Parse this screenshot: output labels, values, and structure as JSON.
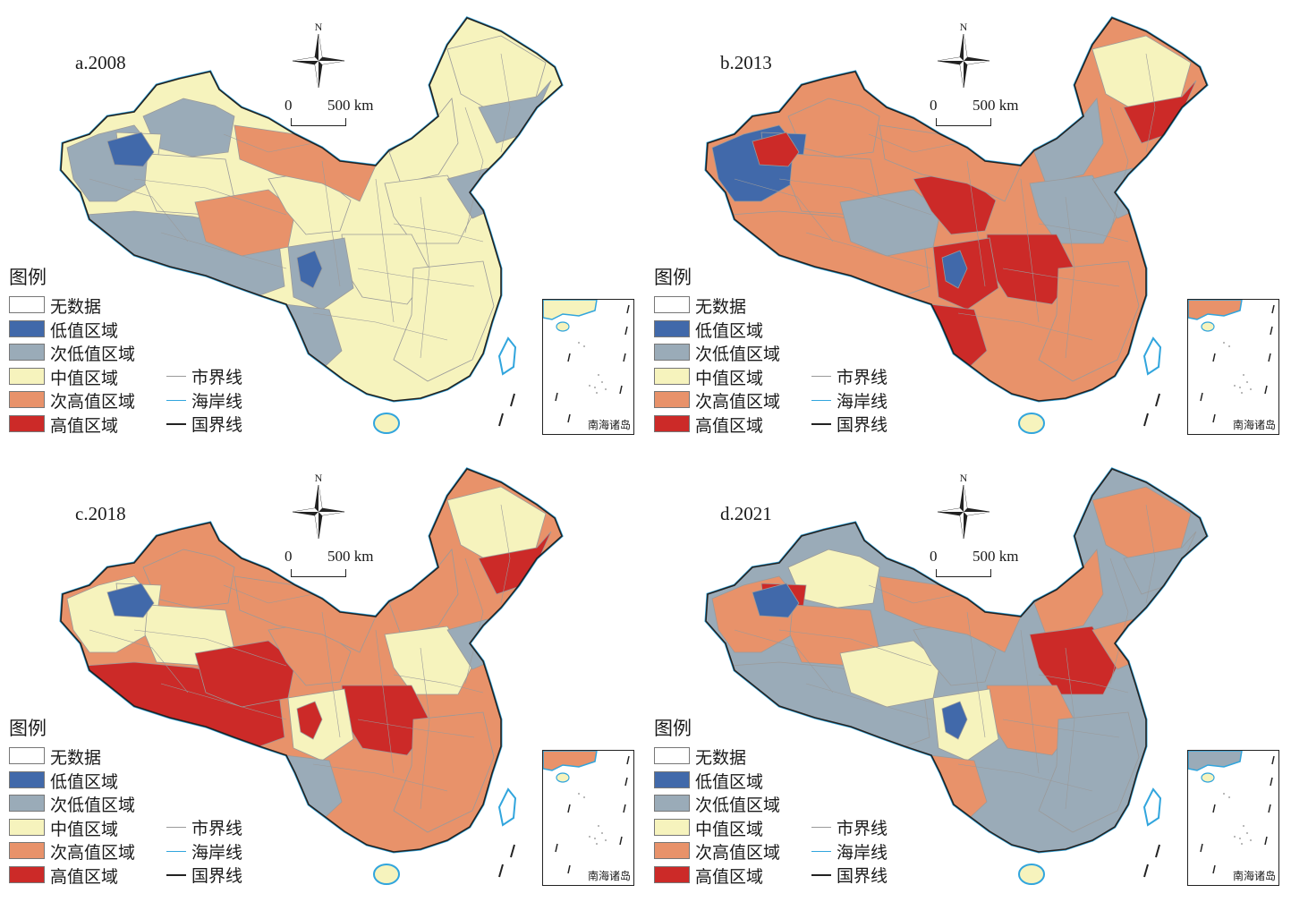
{
  "legend": {
    "title": "图例",
    "classes": [
      {
        "label": "无数据",
        "color": "#ffffff"
      },
      {
        "label": "低值区域",
        "color": "#4169aa"
      },
      {
        "label": "次低值区域",
        "color": "#9aabb8"
      },
      {
        "label": "中值区域",
        "color": "#f6f3bd"
      },
      {
        "label": "次高值区域",
        "color": "#e8926a"
      },
      {
        "label": "高值区域",
        "color": "#cc2a28"
      }
    ],
    "lines": [
      {
        "label": "市界线",
        "color": "#9a9a9a"
      },
      {
        "label": "海岸线",
        "color": "#31a5dd"
      },
      {
        "label": "国界线",
        "color": "#222222"
      }
    ]
  },
  "compass_label": "N",
  "scale": {
    "start": "0",
    "end": "500 km"
  },
  "inset_label": "南海诸岛",
  "panels": [
    {
      "label": "a.2008",
      "dominant": 3,
      "regions": {
        "xinjiang_north": 2,
        "xinjiang_west": 2,
        "xinjiang_east": 3,
        "xinjiang_central": 3,
        "tibet": 2,
        "qinghai": 4,
        "gansu": 3,
        "inner_mongolia_w": 4,
        "inner_mongolia_e": 3,
        "heilongjiang": 3,
        "jilin": 2,
        "north": 3,
        "central": 3,
        "sichuan": 2,
        "yunnan": 2,
        "southeast": 3,
        "northeast_coast": 2,
        "hainan": 3,
        "spot_a": 1,
        "spot_b": 1
      }
    },
    {
      "label": "b.2013",
      "dominant": 4,
      "regions": {
        "xinjiang_north": 4,
        "xinjiang_west": 1,
        "xinjiang_east": 1,
        "xinjiang_central": 4,
        "tibet": 4,
        "qinghai": 2,
        "gansu": 5,
        "inner_mongolia_w": 4,
        "inner_mongolia_e": 2,
        "heilongjiang": 3,
        "jilin": 5,
        "north": 2,
        "central": 5,
        "sichuan": 5,
        "yunnan": 5,
        "southeast": 4,
        "northeast_coast": 2,
        "hainan": 3,
        "spot_a": 5,
        "spot_b": 1
      }
    },
    {
      "label": "c.2018",
      "dominant": 4,
      "regions": {
        "xinjiang_north": 4,
        "xinjiang_west": 3,
        "xinjiang_east": 3,
        "xinjiang_central": 3,
        "tibet": 5,
        "qinghai": 5,
        "gansu": 4,
        "inner_mongolia_w": 4,
        "inner_mongolia_e": 4,
        "heilongjiang": 3,
        "jilin": 5,
        "north": 3,
        "central": 5,
        "sichuan": 3,
        "yunnan": 2,
        "southeast": 4,
        "northeast_coast": 2,
        "hainan": 3,
        "spot_a": 1,
        "spot_b": 5
      }
    },
    {
      "label": "d.2021",
      "dominant": 2,
      "regions": {
        "xinjiang_north": 3,
        "xinjiang_west": 4,
        "xinjiang_east": 5,
        "xinjiang_central": 4,
        "tibet": 2,
        "qinghai": 3,
        "gansu": 2,
        "inner_mongolia_w": 4,
        "inner_mongolia_e": 4,
        "heilongjiang": 4,
        "jilin": 2,
        "north": 5,
        "central": 4,
        "sichuan": 3,
        "yunnan": 4,
        "southeast": 2,
        "northeast_coast": 4,
        "hainan": 3,
        "spot_a": 1,
        "spot_b": 1
      }
    }
  ]
}
